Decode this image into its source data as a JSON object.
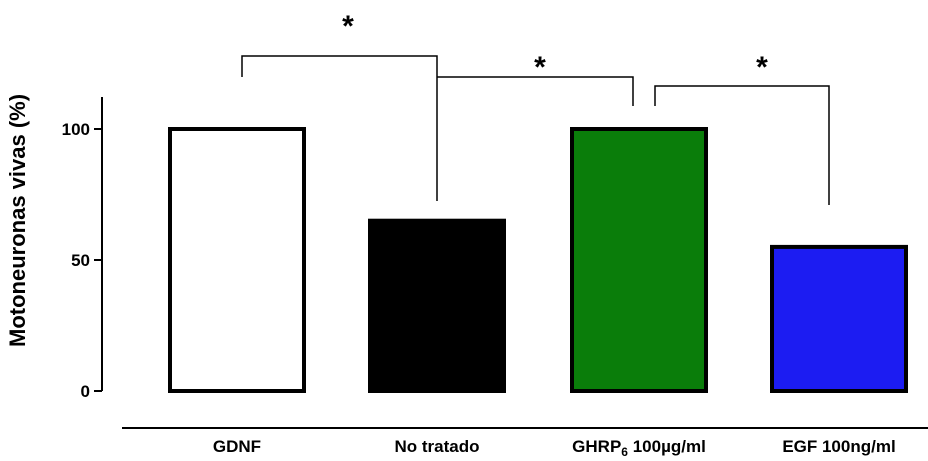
{
  "chart_data": {
    "type": "bar",
    "categories": [
      "GDNF",
      "No tratado",
      "GHRP6 100µg/ml",
      "EGF 100ng/ml"
    ],
    "category_parts": [
      {
        "main": "GDNF",
        "sub": "",
        "rest": ""
      },
      {
        "main": "No tratado",
        "sub": "",
        "rest": ""
      },
      {
        "main": "GHRP",
        "sub": "6",
        "rest": " 100µg/ml"
      },
      {
        "main": "EGF 100ng/ml",
        "sub": "",
        "rest": ""
      }
    ],
    "values": [
      100,
      65,
      100,
      55
    ],
    "colors": [
      "#ffffff",
      "#000000",
      "#0a7d0a",
      "#1c1cf2"
    ],
    "ylabel": "Motoneuronas vivas (%)",
    "yticks": [
      0,
      50,
      100
    ],
    "ylim": [
      0,
      120
    ],
    "grid": false,
    "significance": [
      {
        "from": 0,
        "to": 1,
        "label": "*"
      },
      {
        "from": 1,
        "to": 2,
        "label": "*"
      },
      {
        "from": 2,
        "to": 3,
        "label": "*"
      }
    ]
  }
}
